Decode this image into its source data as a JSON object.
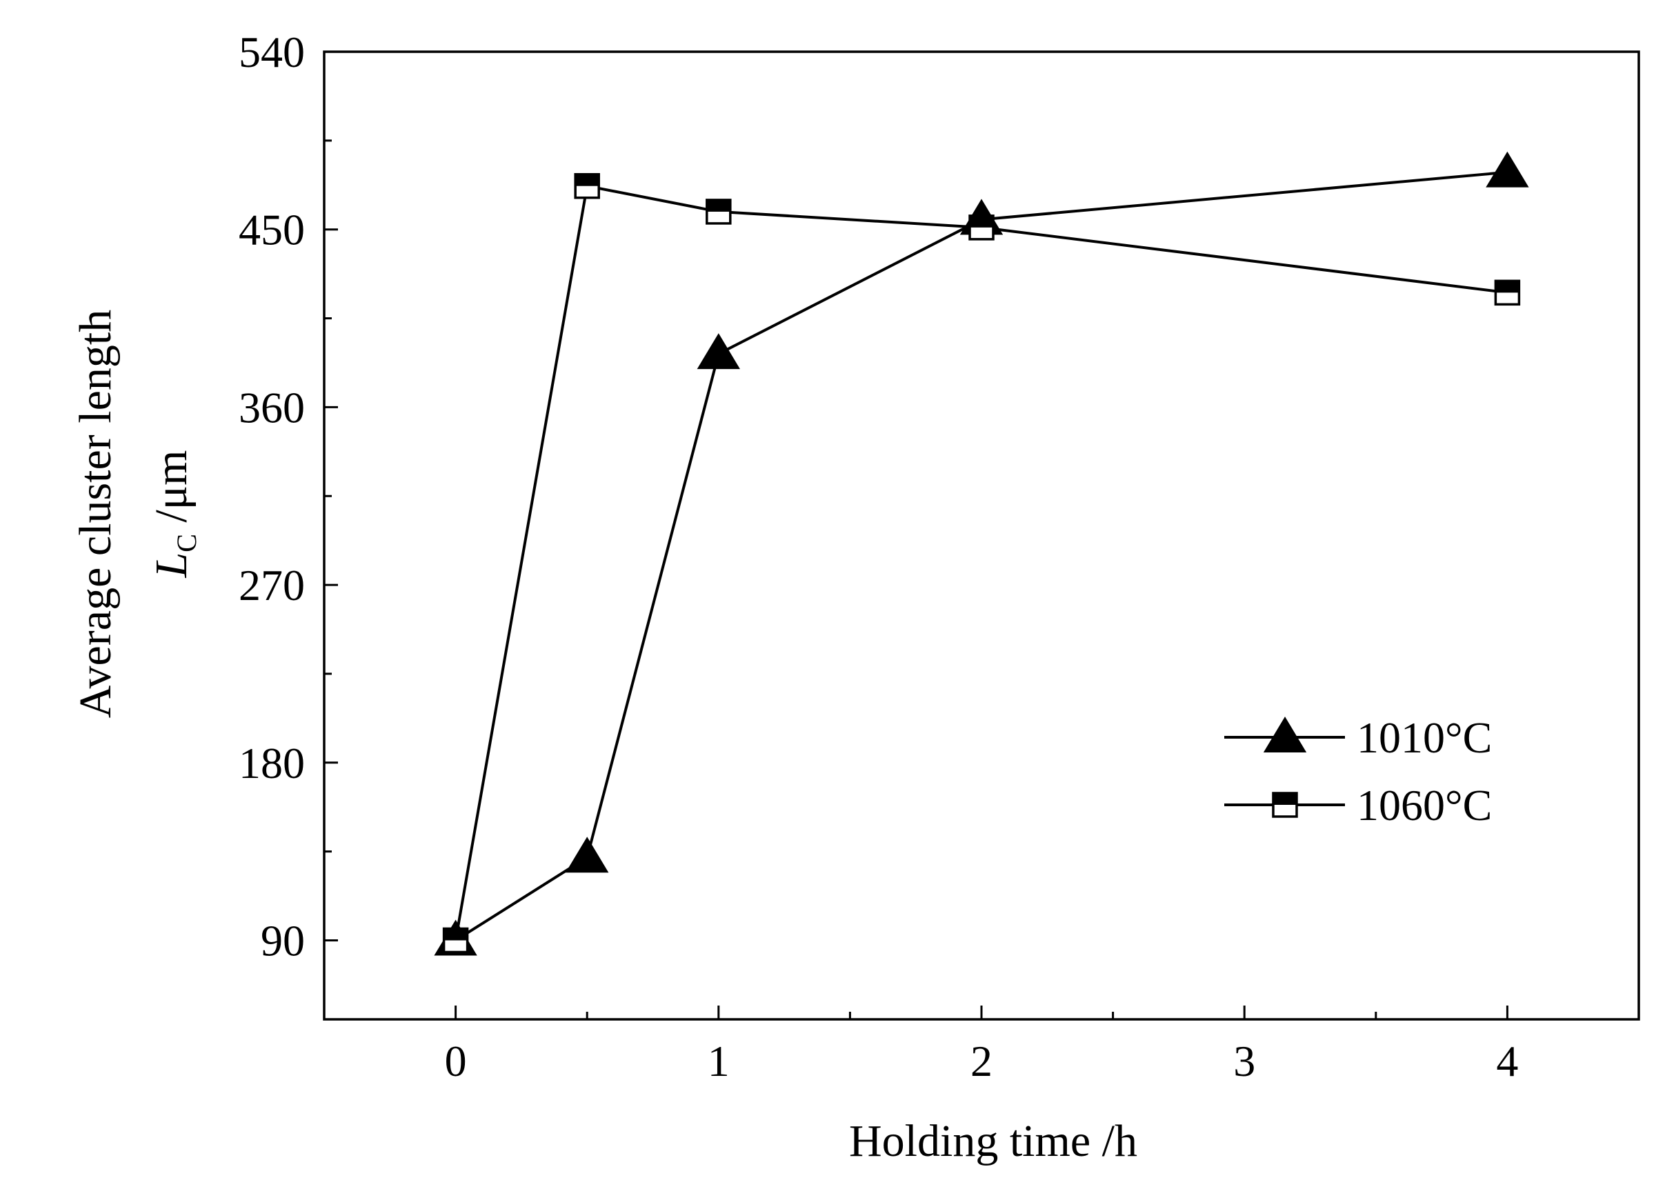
{
  "chart_data": {
    "type": "line",
    "title": "",
    "xlabel": "Holding time /h",
    "ylabel_line1": "Average cluster length",
    "ylabel_line2_symbol": "L",
    "ylabel_line2_subscript": "C",
    "ylabel_line2_unit": " /μm",
    "xlim": [
      -0.5,
      4.5
    ],
    "ylim": [
      50,
      540
    ],
    "x_ticks": [
      0,
      1,
      2,
      3,
      4
    ],
    "x_tick_labels": [
      "0",
      "1",
      "2",
      "3",
      "4"
    ],
    "x_minor_ticks": [
      0.5,
      1.5,
      2.5,
      3.5
    ],
    "y_ticks": [
      90,
      180,
      270,
      360,
      450,
      540
    ],
    "y_tick_labels": [
      "90",
      "180",
      "270",
      "360",
      "450",
      "540"
    ],
    "y_minor_ticks": [
      135,
      225,
      315,
      405,
      495
    ],
    "grid": false,
    "legend_position": "center-right",
    "series": [
      {
        "name": "1010°C",
        "marker": "triangle-filled",
        "x": [
          0,
          0.5,
          1,
          2,
          4
        ],
        "y": [
          90,
          132,
          387,
          455,
          479
        ]
      },
      {
        "name": "1060°C",
        "marker": "square-half-filled",
        "x": [
          0,
          0.5,
          1,
          2,
          4
        ],
        "y": [
          90,
          472,
          459,
          451,
          418
        ]
      }
    ],
    "colors": {
      "line": "#000000",
      "marker_fill": "#000000",
      "marker_empty": "#ffffff"
    }
  }
}
